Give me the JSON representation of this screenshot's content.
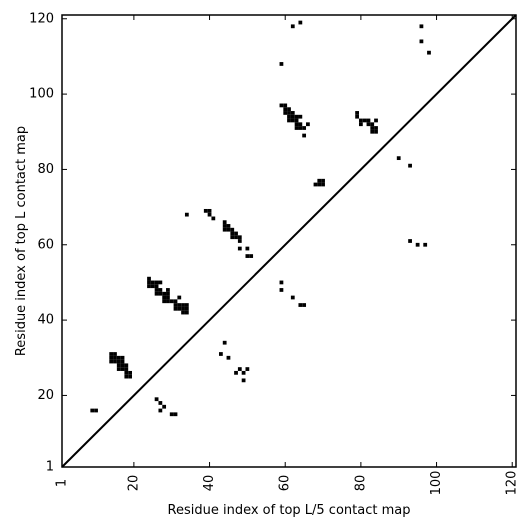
{
  "chart_data": {
    "type": "heatmap",
    "xlabel": "Residue index of top L/5 contact map",
    "ylabel": "Residue index of top L contact map",
    "xlim": [
      1,
      121
    ],
    "ylim": [
      1,
      121
    ],
    "x_ticks": [
      1,
      20,
      40,
      60,
      80,
      100,
      120
    ],
    "y_ticks": [
      1,
      20,
      40,
      60,
      80,
      100,
      120
    ],
    "x_tick_labels": [
      "1",
      "20",
      "40",
      "60",
      "80",
      "100",
      "120"
    ],
    "y_tick_labels": [
      "1",
      "20",
      "40",
      "60",
      "80",
      "100",
      "120"
    ],
    "diagonal": true,
    "grid": false,
    "colors": {
      "contact": "#000000",
      "background": "#ffffff"
    },
    "contacts": [
      [
        9,
        16
      ],
      [
        10,
        16
      ],
      [
        14,
        31
      ],
      [
        15,
        31
      ],
      [
        14,
        30
      ],
      [
        15,
        30
      ],
      [
        16,
        30
      ],
      [
        17,
        30
      ],
      [
        14,
        29
      ],
      [
        15,
        29
      ],
      [
        16,
        29
      ],
      [
        17,
        29
      ],
      [
        16,
        28
      ],
      [
        17,
        28
      ],
      [
        18,
        28
      ],
      [
        16,
        27
      ],
      [
        17,
        27
      ],
      [
        18,
        27
      ],
      [
        18,
        26
      ],
      [
        19,
        26
      ],
      [
        18,
        25
      ],
      [
        19,
        25
      ],
      [
        24,
        51
      ],
      [
        24,
        50
      ],
      [
        25,
        50
      ],
      [
        26,
        50
      ],
      [
        27,
        50
      ],
      [
        24,
        49
      ],
      [
        25,
        49
      ],
      [
        26,
        49
      ],
      [
        26,
        48
      ],
      [
        27,
        48
      ],
      [
        26,
        47
      ],
      [
        27,
        47
      ],
      [
        28,
        47
      ],
      [
        29,
        48
      ],
      [
        29,
        47
      ],
      [
        28,
        46
      ],
      [
        29,
        46
      ],
      [
        28,
        45
      ],
      [
        29,
        45
      ],
      [
        30,
        45
      ],
      [
        31,
        45
      ],
      [
        32,
        46
      ],
      [
        31,
        44
      ],
      [
        32,
        44
      ],
      [
        33,
        44
      ],
      [
        31,
        43
      ],
      [
        32,
        43
      ],
      [
        33,
        43
      ],
      [
        34,
        43
      ],
      [
        33,
        42
      ],
      [
        34,
        42
      ],
      [
        34,
        44
      ],
      [
        26,
        19
      ],
      [
        27,
        18
      ],
      [
        28,
        17
      ],
      [
        27,
        16
      ],
      [
        30,
        15
      ],
      [
        31,
        15
      ],
      [
        34,
        68
      ],
      [
        39,
        69
      ],
      [
        40,
        69
      ],
      [
        40,
        68
      ],
      [
        41,
        67
      ],
      [
        44,
        66
      ],
      [
        44,
        65
      ],
      [
        45,
        65
      ],
      [
        46,
        64
      ],
      [
        44,
        64
      ],
      [
        45,
        64
      ],
      [
        46,
        63
      ],
      [
        47,
        63
      ],
      [
        46,
        62
      ],
      [
        47,
        62
      ],
      [
        48,
        62
      ],
      [
        48,
        61
      ],
      [
        48,
        59
      ],
      [
        50,
        59
      ],
      [
        50,
        57
      ],
      [
        51,
        57
      ],
      [
        43,
        31
      ],
      [
        44,
        34
      ],
      [
        45,
        30
      ],
      [
        47,
        26
      ],
      [
        48,
        27
      ],
      [
        49,
        26
      ],
      [
        49,
        24
      ],
      [
        50,
        27
      ],
      [
        59,
        108
      ],
      [
        62,
        118
      ],
      [
        64,
        119
      ],
      [
        59,
        97
      ],
      [
        60,
        97
      ],
      [
        60,
        96
      ],
      [
        61,
        96
      ],
      [
        60,
        95
      ],
      [
        61,
        95
      ],
      [
        62,
        95
      ],
      [
        61,
        94
      ],
      [
        62,
        94
      ],
      [
        63,
        94
      ],
      [
        64,
        94
      ],
      [
        61,
        93
      ],
      [
        62,
        93
      ],
      [
        63,
        93
      ],
      [
        64,
        92
      ],
      [
        63,
        92
      ],
      [
        63,
        91
      ],
      [
        64,
        91
      ],
      [
        65,
        91
      ],
      [
        66,
        92
      ],
      [
        65,
        89
      ],
      [
        59,
        50
      ],
      [
        59,
        48
      ],
      [
        62,
        46
      ],
      [
        64,
        44
      ],
      [
        65,
        44
      ],
      [
        68,
        76
      ],
      [
        69,
        76
      ],
      [
        70,
        76
      ],
      [
        69,
        77
      ],
      [
        70,
        77
      ],
      [
        79,
        95
      ],
      [
        79,
        94
      ],
      [
        80,
        93
      ],
      [
        80,
        92
      ],
      [
        81,
        93
      ],
      [
        82,
        93
      ],
      [
        82,
        92
      ],
      [
        83,
        92
      ],
      [
        83,
        91
      ],
      [
        84,
        91
      ],
      [
        83,
        90
      ],
      [
        84,
        90
      ],
      [
        84,
        93
      ],
      [
        90,
        83
      ],
      [
        93,
        81
      ],
      [
        96,
        118
      ],
      [
        96,
        114
      ],
      [
        98,
        111
      ],
      [
        93,
        61
      ],
      [
        95,
        60
      ],
      [
        97,
        60
      ]
    ]
  }
}
